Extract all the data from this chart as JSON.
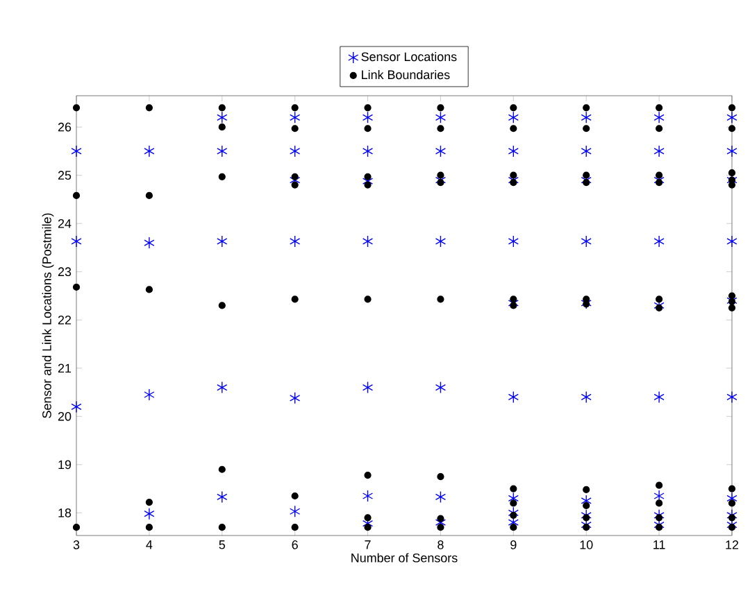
{
  "chart_data": {
    "type": "scatter",
    "xlabel": "Number of Sensors",
    "ylabel": "Sensor and Link Locations (Postmile)",
    "xlim": [
      3,
      12
    ],
    "ylim": [
      17.53,
      26.65
    ],
    "xticks": [
      3,
      4,
      5,
      6,
      7,
      8,
      9,
      10,
      11,
      12
    ],
    "yticks": [
      18,
      19,
      20,
      21,
      22,
      23,
      24,
      25,
      26
    ],
    "legend": "top",
    "grid": false,
    "series": [
      {
        "name": "Sensor Locations",
        "color": "#0000ff",
        "marker": "cross",
        "x": [
          3,
          3,
          3,
          4,
          4,
          4,
          4,
          5,
          5,
          5,
          5,
          5,
          6,
          6,
          6,
          6,
          6,
          6,
          7,
          7,
          7,
          7,
          7,
          7,
          7,
          8,
          8,
          8,
          8,
          8,
          8,
          8,
          9,
          9,
          9,
          9,
          9,
          9,
          9,
          9,
          9,
          10,
          10,
          10,
          10,
          10,
          10,
          10,
          10,
          10,
          11,
          11,
          11,
          11,
          11,
          11,
          11,
          11,
          11,
          12,
          12,
          12,
          12,
          12,
          12,
          12,
          12,
          12
        ],
        "values": [
          25.5,
          23.63,
          20.2,
          25.5,
          23.6,
          20.45,
          17.98,
          26.2,
          25.5,
          23.63,
          20.6,
          18.33,
          26.2,
          25.5,
          24.9,
          23.63,
          20.38,
          18.03,
          26.2,
          25.5,
          24.88,
          23.63,
          20.6,
          18.35,
          17.78,
          26.2,
          25.5,
          24.9,
          23.63,
          20.6,
          18.33,
          17.8,
          26.2,
          25.5,
          24.9,
          23.63,
          22.35,
          20.4,
          18.3,
          18.0,
          17.8,
          26.2,
          25.5,
          24.9,
          23.63,
          22.35,
          20.4,
          18.25,
          17.95,
          17.75,
          26.2,
          25.5,
          24.9,
          23.63,
          22.3,
          20.4,
          18.35,
          17.95,
          17.75,
          26.2,
          25.5,
          24.9,
          23.63,
          22.4,
          20.4,
          18.3,
          17.95,
          17.75
        ]
      },
      {
        "name": "Link Boundaries",
        "color": "#000000",
        "marker": "circle",
        "x": [
          3,
          3,
          3,
          3,
          4,
          4,
          4,
          4,
          4,
          5,
          5,
          5,
          5,
          5,
          5,
          6,
          6,
          6,
          6,
          6,
          6,
          6,
          7,
          7,
          7,
          7,
          7,
          7,
          7,
          7,
          8,
          8,
          8,
          8,
          8,
          8,
          8,
          8,
          9,
          9,
          9,
          9,
          9,
          9,
          9,
          9,
          9,
          9,
          10,
          10,
          10,
          10,
          10,
          10,
          10,
          10,
          10,
          10,
          11,
          11,
          11,
          11,
          11,
          11,
          11,
          11,
          11,
          11,
          12,
          12,
          12,
          12,
          12,
          12,
          12,
          12,
          12,
          12,
          12,
          12
        ],
        "values": [
          26.4,
          24.58,
          22.68,
          17.7,
          26.4,
          24.58,
          22.63,
          18.22,
          17.7,
          26.4,
          26.0,
          24.97,
          22.3,
          18.9,
          17.7,
          26.4,
          25.97,
          24.97,
          24.8,
          22.43,
          18.35,
          17.7,
          26.4,
          25.97,
          24.97,
          24.8,
          22.43,
          18.78,
          17.9,
          17.7,
          26.4,
          25.97,
          25.0,
          24.85,
          22.43,
          18.75,
          17.88,
          17.7,
          26.4,
          25.97,
          25.0,
          24.85,
          22.43,
          22.3,
          18.5,
          18.2,
          17.95,
          17.7,
          26.4,
          25.97,
          25.0,
          24.85,
          22.43,
          22.33,
          18.48,
          18.15,
          17.9,
          17.7,
          26.4,
          25.97,
          25.0,
          24.85,
          22.43,
          22.25,
          18.57,
          18.2,
          17.9,
          17.7,
          26.4,
          25.97,
          25.05,
          24.9,
          24.8,
          22.5,
          22.38,
          22.25,
          18.5,
          18.2,
          17.9,
          17.7
        ]
      }
    ]
  }
}
